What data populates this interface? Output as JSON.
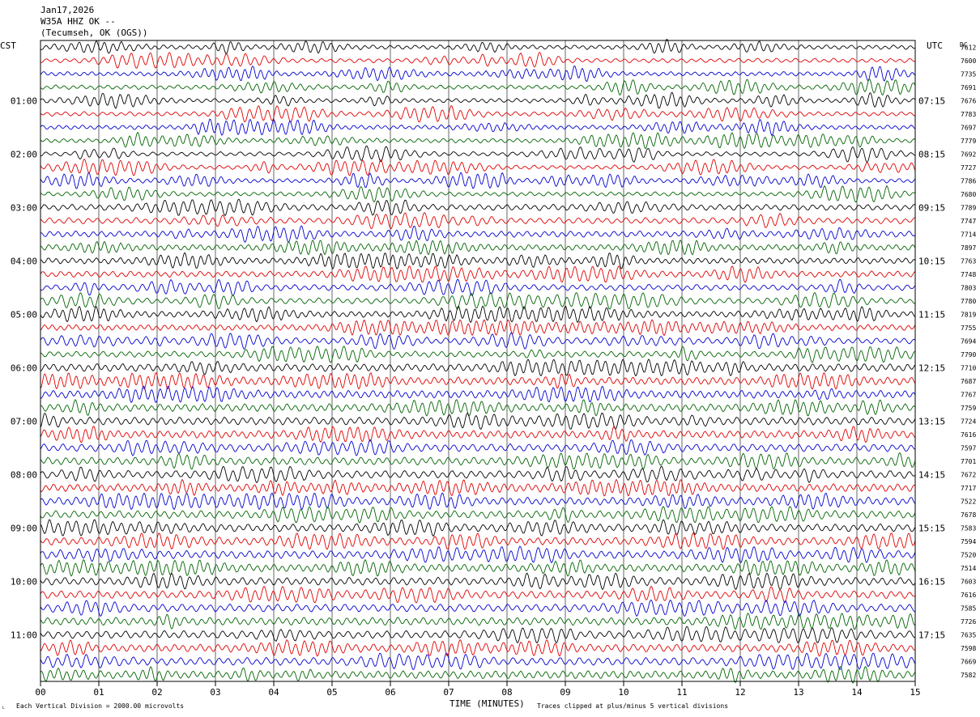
{
  "header": {
    "date": "Jan17,2026",
    "station": "W35A HHZ OK --",
    "location": "(Tecumseh, OK (OGS))"
  },
  "left_tz": "CST",
  "right_tz": "UTC",
  "right_col_label": "DC",
  "chart_data": {
    "type": "line",
    "title": "",
    "xlabel": "TIME (MINUTES)",
    "x_ticks": [
      "00",
      "01",
      "02",
      "03",
      "04",
      "05",
      "06",
      "07",
      "08",
      "09",
      "10",
      "11",
      "12",
      "13",
      "14",
      "15"
    ],
    "xlim": [
      0,
      15
    ],
    "traces_per_hour": 4,
    "trace_colors": [
      "#000000",
      "#e00000",
      "#0000d0",
      "#006400"
    ],
    "left_hour_labels": [
      "01:00",
      "02:00",
      "03:00",
      "04:00",
      "05:00",
      "06:00",
      "07:00",
      "08:00",
      "09:00",
      "10:00",
      "11:00"
    ],
    "right_hour_labels": [
      "07:15",
      "08:15",
      "09:15",
      "10:15",
      "11:15",
      "12:15",
      "13:15",
      "14:15",
      "15:15",
      "16:15",
      "17:15"
    ],
    "dc_offsets": [
      "7612",
      "7600",
      "7735",
      "7691",
      "7676",
      "7783",
      "7697",
      "7779",
      "7692",
      "7727",
      "7786",
      "7680",
      "7789",
      "7747",
      "7714",
      "7897",
      "7763",
      "7748",
      "7803",
      "7780",
      "7819",
      "7755",
      "7694",
      "7790",
      "7710",
      "7687",
      "7767",
      "7759",
      "7724",
      "7616",
      "7597",
      "7701",
      "7672",
      "7717",
      "7522",
      "7678",
      "7583",
      "7594",
      "7520",
      "7514",
      "7603",
      "7616",
      "7585",
      "7726",
      "7635",
      "7598",
      "7669",
      "7582"
    ],
    "grid": true
  },
  "footer": {
    "scale": "Each Vertical Division = 2000.00 microvolts",
    "clip": "Traces clipped at plus/minus 5 vertical divisions"
  }
}
